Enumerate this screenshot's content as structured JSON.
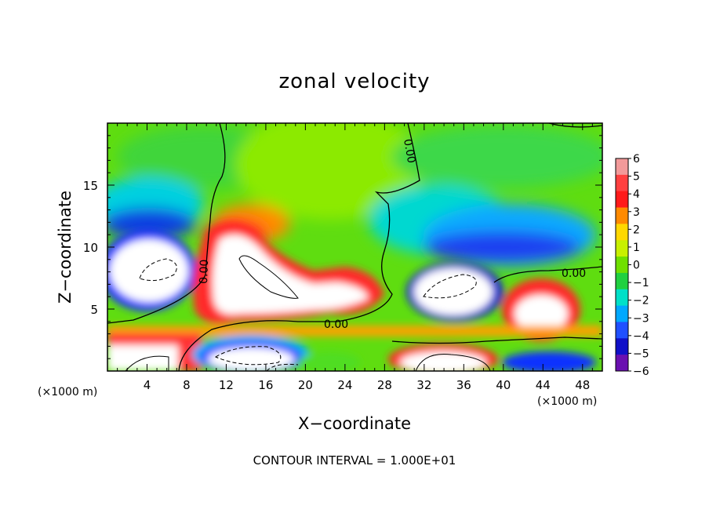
{
  "chart_data": {
    "type": "heatmap",
    "title": "zonal velocity",
    "xlabel": "X−coordinate",
    "ylabel": "Z−coordinate",
    "x_unit_label": "(×1000 m)",
    "x_unit_label_right": "(×1000 m)",
    "xlim": [
      0,
      50
    ],
    "ylim": [
      0,
      20
    ],
    "x_ticks": [
      4,
      8,
      12,
      16,
      20,
      24,
      28,
      32,
      36,
      40,
      44,
      48
    ],
    "y_ticks": [
      5,
      10,
      15
    ],
    "colorbar": {
      "ticks": [
        "6",
        "5",
        "4",
        "3",
        "2",
        "1",
        "0",
        "−1",
        "−2",
        "−3",
        "−4",
        "−5",
        "−6"
      ],
      "values": [
        6,
        5,
        4,
        3,
        2,
        1,
        0,
        -1,
        -2,
        -3,
        -4,
        -5,
        -6
      ],
      "colors": [
        "#f29a9a",
        "#ff4040",
        "#ff1a1a",
        "#ff8a00",
        "#ffd800",
        "#c8f000",
        "#6fe000",
        "#20d040",
        "#00e0c8",
        "#00a8ff",
        "#2050ff",
        "#1010c8",
        "#6a10b0"
      ]
    },
    "contour_labels": [
      "0.00",
      "0.00",
      "0.00",
      "0.00"
    ],
    "contour_interval_text": "CONTOUR INTERVAL =  1.000E+01",
    "grid": false
  }
}
